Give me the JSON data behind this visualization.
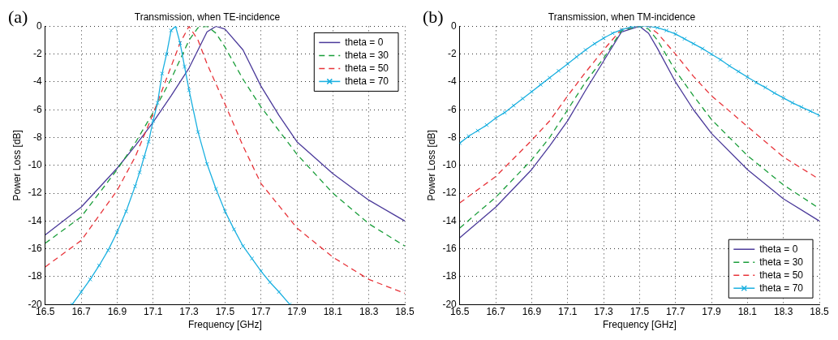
{
  "chart_data": [
    {
      "type": "line",
      "title": "Transmission, when TE-incidence",
      "xlabel": "Frequency [GHz]",
      "ylabel": "Power Loss [dB]",
      "annotations": [
        "(a)"
      ],
      "xlim": [
        16.5,
        18.5
      ],
      "ylim": [
        -20,
        0
      ],
      "xticks": [
        16.5,
        16.7,
        16.9,
        17.1,
        17.3,
        17.5,
        17.7,
        17.9,
        18.1,
        18.3,
        18.5
      ],
      "yticks": [
        -20,
        -18,
        -16,
        -14,
        -12,
        -10,
        -8,
        -6,
        -4,
        -2,
        0
      ],
      "grid": true,
      "legend": "top right",
      "series": [
        {
          "name": "theta = 0",
          "color": "#4b3a9a",
          "line_style": "solid",
          "marker": "none",
          "x": [
            16.5,
            16.7,
            16.9,
            17.0,
            17.1,
            17.2,
            17.3,
            17.4,
            17.45,
            17.5,
            17.6,
            17.7,
            17.8,
            17.9,
            18.1,
            18.3,
            18.5
          ],
          "values": [
            -15,
            -13,
            -10.2,
            -8.6,
            -6.9,
            -5,
            -3,
            -0.4,
            0,
            -0.2,
            -1.7,
            -4.3,
            -6.4,
            -8.3,
            -10.6,
            -12.5,
            -14
          ]
        },
        {
          "name": "theta = 30",
          "color": "#1a9e3a",
          "line_style": "dashed",
          "marker": "none",
          "x": [
            16.5,
            16.7,
            16.9,
            17.0,
            17.1,
            17.2,
            17.3,
            17.35,
            17.4,
            17.45,
            17.5,
            17.6,
            17.7,
            17.9,
            18.1,
            18.3,
            18.5
          ],
          "values": [
            -15.6,
            -13.7,
            -10.3,
            -8.4,
            -6.2,
            -3.8,
            -1,
            -0.1,
            0,
            -0.5,
            -1.5,
            -3.8,
            -5.8,
            -9.2,
            -12,
            -14.2,
            -15.8
          ]
        },
        {
          "name": "theta = 50",
          "color": "#e8343a",
          "line_style": "dashed",
          "marker": "none",
          "x": [
            16.5,
            16.7,
            16.9,
            17.0,
            17.1,
            17.2,
            17.25,
            17.3,
            17.35,
            17.4,
            17.5,
            17.6,
            17.7,
            17.9,
            18.1,
            18.3,
            18.5
          ],
          "values": [
            -17.3,
            -15.4,
            -11.8,
            -9.4,
            -6.3,
            -2.9,
            -1.2,
            0,
            -1,
            -2.7,
            -5.6,
            -8.6,
            -11.3,
            -14.5,
            -16.6,
            -18.2,
            -19.2
          ]
        },
        {
          "name": "theta = 70",
          "color": "#1ab0e0",
          "line_style": "solid",
          "marker": "cross",
          "x": [
            16.65,
            16.7,
            16.75,
            16.8,
            16.85,
            16.9,
            16.95,
            17.0,
            17.025,
            17.05,
            17.075,
            17.1,
            17.125,
            17.15,
            17.175,
            17.2,
            17.225,
            17.25,
            17.275,
            17.3,
            17.35,
            17.4,
            17.45,
            17.5,
            17.55,
            17.6,
            17.65,
            17.7,
            17.75,
            17.8,
            17.86
          ],
          "values": [
            -20,
            -19.1,
            -18.2,
            -17.2,
            -16.1,
            -14.8,
            -13.3,
            -11.5,
            -10.5,
            -9.4,
            -8.3,
            -6.8,
            -5.5,
            -3.4,
            -2,
            -0.3,
            0,
            -1.2,
            -2.9,
            -4.6,
            -7.6,
            -9.9,
            -11.7,
            -13.3,
            -14.6,
            -15.8,
            -16.7,
            -17.6,
            -18.4,
            -19.1,
            -20
          ]
        }
      ]
    },
    {
      "type": "line",
      "title": "Transmission, when TM-incidence",
      "xlabel": "Frequency [GHz]",
      "ylabel": "Power Loss [dB]",
      "annotations": [
        "(b)"
      ],
      "xlim": [
        16.5,
        18.5
      ],
      "ylim": [
        -20,
        0
      ],
      "xticks": [
        16.5,
        16.7,
        16.9,
        17.1,
        17.3,
        17.5,
        17.7,
        17.9,
        18.1,
        18.3,
        18.5
      ],
      "yticks": [
        -20,
        -18,
        -16,
        -14,
        -12,
        -10,
        -8,
        -6,
        -4,
        -2,
        0
      ],
      "grid": true,
      "legend": "bottom right",
      "series": [
        {
          "name": "theta = 0",
          "color": "#4b3a9a",
          "line_style": "solid",
          "marker": "none",
          "x": [
            16.5,
            16.7,
            16.9,
            17.0,
            17.1,
            17.2,
            17.3,
            17.4,
            17.5,
            17.55,
            17.6,
            17.7,
            17.8,
            17.9,
            18.1,
            18.3,
            18.5
          ],
          "values": [
            -15.2,
            -13,
            -10.3,
            -8.6,
            -6.8,
            -4.6,
            -2.5,
            -0.4,
            0,
            -0.5,
            -1.6,
            -4,
            -6,
            -7.7,
            -10.3,
            -12.4,
            -14
          ]
        },
        {
          "name": "theta = 30",
          "color": "#1a9e3a",
          "line_style": "dashed",
          "marker": "none",
          "x": [
            16.5,
            16.7,
            16.9,
            17.0,
            17.1,
            17.2,
            17.3,
            17.4,
            17.5,
            17.55,
            17.6,
            17.7,
            17.8,
            17.9,
            18.1,
            18.3,
            18.5
          ],
          "values": [
            -14.5,
            -12.3,
            -9.6,
            -8,
            -6,
            -4,
            -2.3,
            -0.3,
            0,
            -0.2,
            -1,
            -3.2,
            -5,
            -6.7,
            -9.3,
            -11.4,
            -13.1
          ]
        },
        {
          "name": "theta = 50",
          "color": "#e8343a",
          "line_style": "dashed",
          "marker": "none",
          "x": [
            16.5,
            16.7,
            16.9,
            17.0,
            17.1,
            17.2,
            17.3,
            17.4,
            17.5,
            17.55,
            17.6,
            17.7,
            17.8,
            17.9,
            18.1,
            18.3,
            18.5
          ],
          "values": [
            -12.7,
            -10.8,
            -8.2,
            -6.8,
            -5,
            -3.3,
            -1.7,
            -0.2,
            0,
            0,
            -0.5,
            -2,
            -3.6,
            -5,
            -7.2,
            -9.4,
            -11
          ]
        },
        {
          "name": "theta = 70",
          "color": "#1ab0e0",
          "line_style": "solid",
          "marker": "cross",
          "x": [
            16.5,
            16.55,
            16.6,
            16.65,
            16.7,
            16.75,
            16.8,
            16.85,
            16.9,
            16.95,
            17.0,
            17.05,
            17.1,
            17.15,
            17.2,
            17.25,
            17.3,
            17.35,
            17.4,
            17.45,
            17.5,
            17.55,
            17.6,
            17.65,
            17.7,
            17.75,
            17.8,
            17.85,
            17.9,
            17.95,
            18.0,
            18.05,
            18.1,
            18.15,
            18.2,
            18.25,
            18.3,
            18.35,
            18.4,
            18.45,
            18.5
          ],
          "values": [
            -8.4,
            -7.9,
            -7.5,
            -7.1,
            -6.6,
            -6.2,
            -5.7,
            -5.2,
            -4.7,
            -4.2,
            -3.7,
            -3.2,
            -2.7,
            -2.2,
            -1.7,
            -1.25,
            -0.85,
            -0.5,
            -0.25,
            -0.05,
            0,
            0,
            -0.1,
            -0.3,
            -0.55,
            -0.9,
            -1.25,
            -1.6,
            -2,
            -2.4,
            -2.85,
            -3.25,
            -3.65,
            -4.05,
            -4.4,
            -4.8,
            -5.15,
            -5.5,
            -5.8,
            -6.1,
            -6.4
          ]
        }
      ]
    }
  ]
}
